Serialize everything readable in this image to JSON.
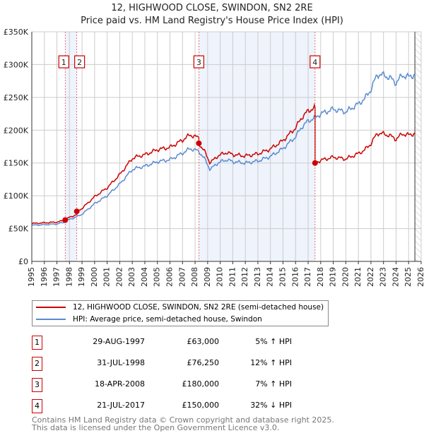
{
  "title": "12, HIGHWOOD CLOSE, SWINDON, SN2 2RE",
  "subtitle": "Price paid vs. HM Land Registry's House Price Index (HPI)",
  "chart_data": {
    "type": "line",
    "xlim": [
      1995,
      2026
    ],
    "ylim": [
      0,
      350000
    ],
    "x_ticks": [
      "1995",
      "1996",
      "1997",
      "1998",
      "1999",
      "2000",
      "2001",
      "2002",
      "2003",
      "2004",
      "2005",
      "2006",
      "2007",
      "2008",
      "2009",
      "2010",
      "2011",
      "2012",
      "2013",
      "2014",
      "2015",
      "2016",
      "2017",
      "2018",
      "2019",
      "2020",
      "2021",
      "2022",
      "2023",
      "2024",
      "2025",
      "2026"
    ],
    "y_ticks": [
      {
        "v": 0,
        "label": "£0"
      },
      {
        "v": 50000,
        "label": "£50K"
      },
      {
        "v": 100000,
        "label": "£100K"
      },
      {
        "v": 150000,
        "label": "£150K"
      },
      {
        "v": 200000,
        "label": "£200K"
      },
      {
        "v": 250000,
        "label": "£250K"
      },
      {
        "v": 300000,
        "label": "£300K"
      },
      {
        "v": 350000,
        "label": "£350K"
      }
    ],
    "hpi_series": {
      "name": "HPI: Average price, semi-detached house, Swindon",
      "color": "#5b8bd0",
      "x": [
        1995,
        1996,
        1997,
        1997.66,
        1998,
        1998.58,
        1999,
        2000,
        2001,
        2002,
        2003,
        2003.5,
        2004,
        2005,
        2006,
        2007,
        2007.6,
        2008.3,
        2008.8,
        2009.2,
        2009.8,
        2010.5,
        2011,
        2012,
        2013,
        2014,
        2015,
        2016,
        2016.5,
        2017,
        2017.55,
        2018,
        2019,
        2020,
        2021,
        2021.5,
        2022,
        2022.5,
        2023,
        2023.5,
        2024,
        2024.5,
        2025,
        2025.5
      ],
      "y": [
        55000,
        56000,
        57000,
        60000,
        64000,
        68000,
        72000,
        88000,
        100000,
        118000,
        140000,
        143000,
        145000,
        152000,
        155000,
        165000,
        172000,
        168000,
        155000,
        140000,
        150000,
        155000,
        152000,
        150000,
        153000,
        160000,
        172000,
        190000,
        205000,
        214000,
        219000,
        225000,
        232000,
        228000,
        240000,
        248000,
        262000,
        285000,
        284000,
        280000,
        272000,
        284000,
        281000,
        285000
      ]
    },
    "price_series": {
      "name": "12, HIGHWOOD CLOSE, SWINDON, SN2 2RE (semi-detached house)",
      "color": "#cc0000"
    },
    "sales": [
      {
        "n": "1",
        "x": 1997.66,
        "date": "29-AUG-1997",
        "price": 63000,
        "price_label": "£63,000",
        "hpi": "5% ↑ HPI"
      },
      {
        "n": "2",
        "x": 1998.58,
        "date": "31-JUL-1998",
        "price": 76250,
        "price_label": "£76,250",
        "hpi": "12% ↑ HPI"
      },
      {
        "n": "3",
        "x": 2008.3,
        "date": "18-APR-2008",
        "price": 180000,
        "price_label": "£180,000",
        "hpi": "7% ↑ HPI"
      },
      {
        "n": "4",
        "x": 2017.55,
        "date": "21-JUL-2017",
        "price": 150000,
        "price_label": "£150,000",
        "hpi": "32% ↓ HPI"
      }
    ],
    "forecast_from": 2025.5
  },
  "legend": {
    "price": "12, HIGHWOOD CLOSE, SWINDON, SN2 2RE (semi-detached house)",
    "hpi": "HPI: Average price, semi-detached house, Swindon"
  },
  "footer": [
    "Contains HM Land Registry data © Crown copyright and database right 2025.",
    "This data is licensed under the Open Government Licence v3.0."
  ]
}
